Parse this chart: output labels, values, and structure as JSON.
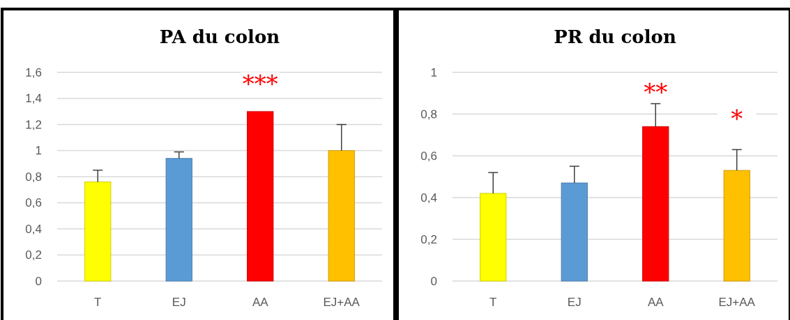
{
  "chart_data": [
    {
      "type": "bar",
      "title": "PA du colon",
      "categories": [
        "T",
        "EJ",
        "AA",
        "EJ+AA"
      ],
      "values": [
        0.76,
        0.94,
        1.3,
        1.0
      ],
      "colors": [
        "#ffff00",
        "#5b9bd5",
        "#ff0000",
        "#ffc000"
      ],
      "errors": [
        0.09,
        0.05,
        null,
        0.2
      ],
      "ylim": [
        0,
        1.6
      ],
      "yticks": [
        {
          "value": 0,
          "label": "0"
        },
        {
          "value": 0.2,
          "label": "0,2"
        },
        {
          "value": 0.4,
          "label": "0,4"
        },
        {
          "value": 0.6,
          "label": "0,6"
        },
        {
          "value": 0.8,
          "label": "0,8"
        },
        {
          "value": 1,
          "label": "1"
        },
        {
          "value": 1.2,
          "label": "1,2"
        },
        {
          "value": 1.4,
          "label": "1,4"
        },
        {
          "value": 1.6,
          "label": "1,6"
        }
      ],
      "grid": "y",
      "annotations": [
        "***"
      ]
    },
    {
      "type": "bar",
      "title": "PR du colon",
      "categories": [
        "T",
        "EJ",
        "AA",
        "EJ+AA"
      ],
      "values": [
        0.42,
        0.47,
        0.74,
        0.53
      ],
      "colors": [
        "#ffff00",
        "#5b9bd5",
        "#ff0000",
        "#ffc000"
      ],
      "errors": [
        0.1,
        0.08,
        0.11,
        0.1
      ],
      "ylim": [
        0,
        1
      ],
      "yticks": [
        {
          "value": 0,
          "label": "0"
        },
        {
          "value": 0.2,
          "label": "0,2"
        },
        {
          "value": 0.4,
          "label": "0,4"
        },
        {
          "value": 0.6,
          "label": "0,6"
        },
        {
          "value": 0.8,
          "label": "0,8"
        },
        {
          "value": 1,
          "label": "1"
        }
      ],
      "grid": "y",
      "annotations": [
        "**",
        "*"
      ]
    }
  ]
}
